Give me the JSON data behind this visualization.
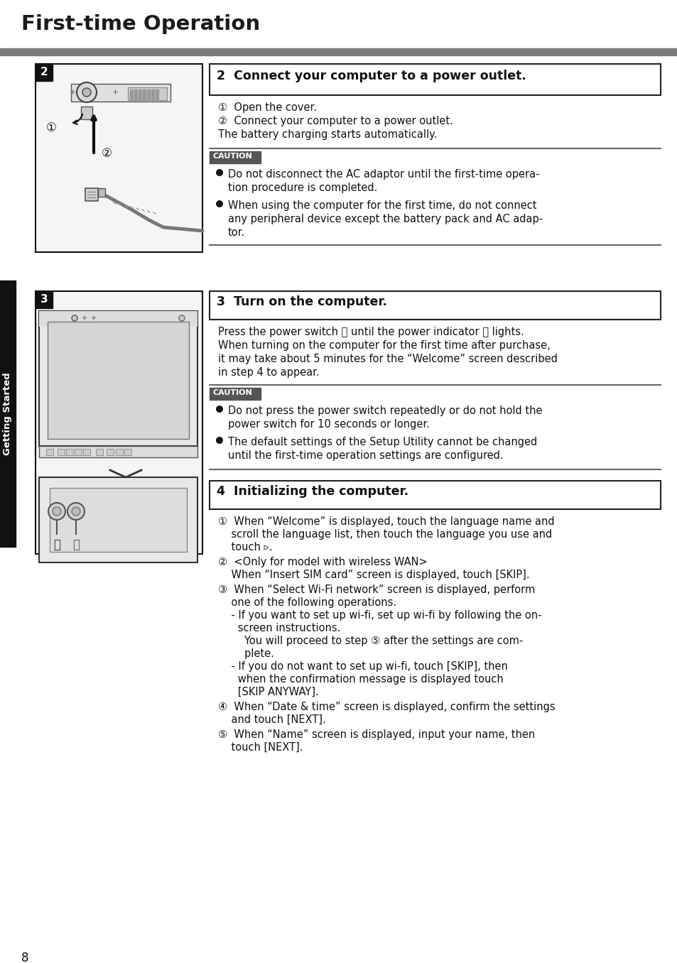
{
  "title": "First-time Operation",
  "page_bg": "#ffffff",
  "page_number": "8",
  "sidebar_text": "Getting Started",
  "section2_header": "2  Connect your computer to a power outlet.",
  "section2_body_lines": [
    "①  Open the cover.",
    "②  Connect your computer to a power outlet.",
    "The battery charging starts automatically."
  ],
  "section2_caution_label": "CAUTION",
  "section2_bullet1_lines": [
    "Do not disconnect the AC adaptor until the first-time opera-",
    "tion procedure is completed."
  ],
  "section2_bullet2_lines": [
    "When using the computer for the first time, do not connect",
    "any peripheral device except the battery pack and AC adap-",
    "tor."
  ],
  "section3_header": "3  Turn on the computer.",
  "section3_body_lines": [
    "Press the power switch ⏻ until the power indicator ⓘ lights.",
    "When turning on the computer for the first time after purchase,",
    "it may take about 5 minutes for the “Welcome” screen described",
    "in step 4 to appear."
  ],
  "section3_caution_label": "CAUTION",
  "section3_bullet1_lines": [
    "Do not press the power switch repeatedly or do not hold the",
    "power switch for 10 seconds or longer."
  ],
  "section3_bullet2_lines": [
    "The default settings of the Setup Utility cannot be changed",
    "until the first-time operation settings are configured."
  ],
  "section4_header": "4  Initializing the computer.",
  "section4_item1_lines": [
    "①  When “Welcome” is displayed, touch the language name and",
    "    scroll the language list, then touch the language you use and",
    "    touch ▹."
  ],
  "section4_item2_lines": [
    "②  <Only for model with wireless WAN>",
    "    When “Insert SIM card” screen is displayed, touch [SKIP]."
  ],
  "section4_item3_lines": [
    "③  When “Select Wi-Fi network” screen is displayed, perform",
    "    one of the following operations.",
    "    - If you want to set up wi-fi, set up wi-fi by following the on-",
    "      screen instructions.",
    "        You will proceed to step ⑤ after the settings are com-",
    "        plete.",
    "    - If you do not want to set up wi-fi, touch [SKIP], then",
    "      when the confirmation message is displayed touch",
    "      [SKIP ANYWAY]."
  ],
  "section4_item4_lines": [
    "④  When “Date & time” screen is displayed, confirm the settings",
    "    and touch [NEXT]."
  ],
  "section4_item5_lines": [
    "⑤  When “Name” screen is displayed, input your name, then",
    "    touch [NEXT]."
  ]
}
